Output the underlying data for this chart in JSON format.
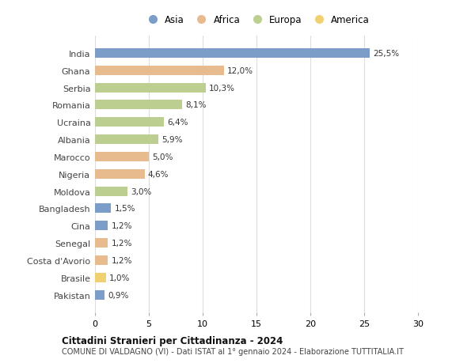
{
  "countries": [
    "India",
    "Ghana",
    "Serbia",
    "Romania",
    "Ucraina",
    "Albania",
    "Marocco",
    "Nigeria",
    "Moldova",
    "Bangladesh",
    "Cina",
    "Senegal",
    "Costa d'Avorio",
    "Brasile",
    "Pakistan"
  ],
  "values": [
    25.5,
    12.0,
    10.3,
    8.1,
    6.4,
    5.9,
    5.0,
    4.6,
    3.0,
    1.5,
    1.2,
    1.2,
    1.2,
    1.0,
    0.9
  ],
  "labels": [
    "25,5%",
    "12,0%",
    "10,3%",
    "8,1%",
    "6,4%",
    "5,9%",
    "5,0%",
    "4,6%",
    "3,0%",
    "1,5%",
    "1,2%",
    "1,2%",
    "1,2%",
    "1,0%",
    "0,9%"
  ],
  "continents": [
    "Asia",
    "Africa",
    "Europa",
    "Europa",
    "Europa",
    "Europa",
    "Africa",
    "Africa",
    "Europa",
    "Asia",
    "Asia",
    "Africa",
    "Africa",
    "America",
    "Asia"
  ],
  "colors": {
    "Asia": "#7b9dc8",
    "Africa": "#e8bb8e",
    "Europa": "#bccf90",
    "America": "#f0d070"
  },
  "legend_order": [
    "Asia",
    "Africa",
    "Europa",
    "America"
  ],
  "title1": "Cittadini Stranieri per Cittadinanza - 2024",
  "title2": "COMUNE DI VALDAGNO (VI) - Dati ISTAT al 1° gennaio 2024 - Elaborazione TUTTITALIA.IT",
  "xlim": [
    0,
    30
  ],
  "xticks": [
    0,
    5,
    10,
    15,
    20,
    25,
    30
  ],
  "bg_color": "#ffffff",
  "grid_color": "#dddddd"
}
